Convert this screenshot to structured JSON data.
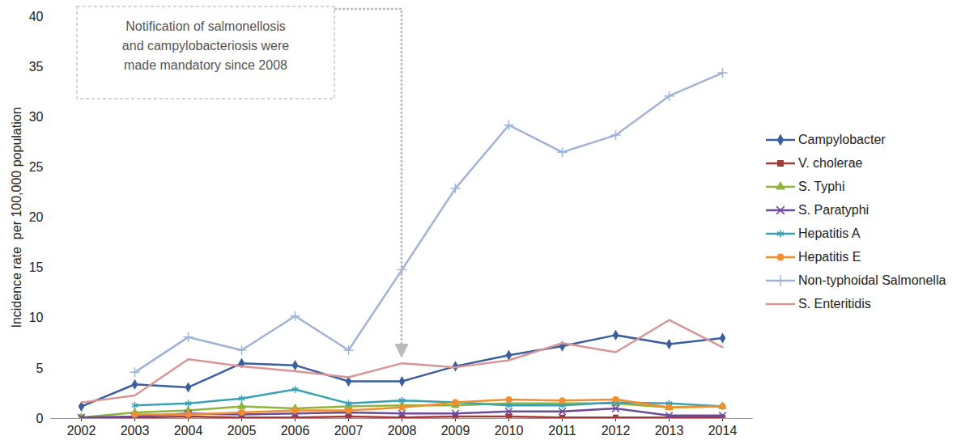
{
  "chart_data": {
    "type": "line",
    "y_label": "Incidence rate  per 100,000 population",
    "categories": [
      "2002",
      "2003",
      "2004",
      "2005",
      "2006",
      "2007",
      "2008",
      "2009",
      "2010",
      "2011",
      "2012",
      "2013",
      "2014"
    ],
    "ylim": [
      0,
      40
    ],
    "yticks": [
      0,
      5,
      10,
      15,
      20,
      25,
      30,
      35,
      40
    ],
    "grid": false,
    "legend": "right",
    "annotations": [
      {
        "text": "Notification of salmonellosis\nand campylobacteriosis were\nmade mandatory since 2008",
        "x": "2008",
        "y": 5.5
      }
    ],
    "series": [
      {
        "name": "Campylobacter",
        "color": "#3a5f9e",
        "marker": "diamond",
        "values": [
          1.2,
          3.4,
          3.1,
          5.5,
          5.3,
          3.7,
          3.7,
          5.2,
          6.3,
          7.2,
          8.3,
          7.4,
          8.0
        ]
      },
      {
        "name": "V. cholerae",
        "color": "#a33a3a",
        "marker": "square",
        "values": [
          0.1,
          0.1,
          0.2,
          0.1,
          0.1,
          0.2,
          0.1,
          0.2,
          0.2,
          0.1,
          0.1,
          0.1,
          0.1
        ]
      },
      {
        "name": "S. Typhi",
        "color": "#8fb43b",
        "marker": "triangle",
        "values": [
          0.1,
          0.6,
          0.8,
          1.2,
          1.0,
          1.2,
          1.3,
          1.3,
          1.5,
          1.5,
          1.5,
          1.1,
          1.2
        ]
      },
      {
        "name": "S. Paratyphi",
        "color": "#6d4a99",
        "marker": "times",
        "values": [
          0.1,
          0.2,
          0.5,
          0.4,
          0.5,
          0.6,
          0.5,
          0.5,
          0.7,
          0.7,
          1.0,
          0.3,
          0.3
        ]
      },
      {
        "name": "Hepatitis A",
        "color": "#3aa1b5",
        "marker": "asterisk",
        "values": [
          null,
          1.3,
          1.5,
          2.0,
          2.9,
          1.5,
          1.8,
          1.6,
          1.3,
          1.3,
          1.6,
          1.5,
          1.2
        ]
      },
      {
        "name": "Hepatitis E",
        "color": "#f28e2b",
        "marker": "circle",
        "values": [
          null,
          0.4,
          0.4,
          0.6,
          0.8,
          0.8,
          1.1,
          1.6,
          1.9,
          1.8,
          1.9,
          1.1,
          1.2
        ]
      },
      {
        "name": "Non-typhoidal Salmonella",
        "color": "#9fb2d8",
        "marker": "plus",
        "values": [
          null,
          4.6,
          8.1,
          6.8,
          10.2,
          6.8,
          14.8,
          22.9,
          29.2,
          26.5,
          28.2,
          32.1,
          34.4
        ]
      },
      {
        "name": "S. Enteritidis",
        "color": "#d99594",
        "marker": "none",
        "values": [
          1.6,
          2.3,
          5.9,
          5.2,
          4.7,
          4.1,
          5.5,
          5.1,
          5.8,
          7.5,
          6.6,
          9.8,
          7.1
        ]
      }
    ]
  }
}
